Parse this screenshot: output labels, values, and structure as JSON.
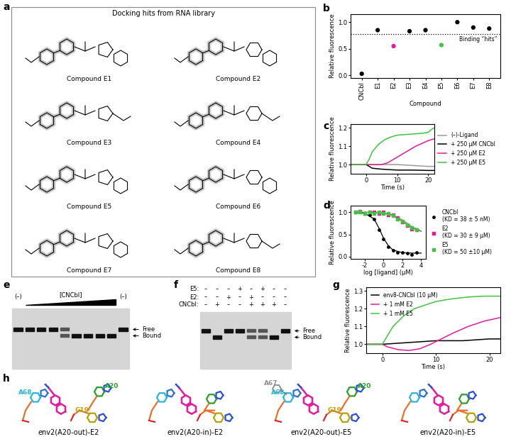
{
  "panel_labels": [
    "a",
    "b",
    "c",
    "d",
    "e",
    "f",
    "g",
    "h"
  ],
  "docking": {
    "title": "Docking hits from RNA library",
    "compounds": [
      "Compound E1",
      "Compound E2",
      "Compound E3",
      "Compound E4",
      "Compound E5",
      "Compound E6",
      "Compound E7",
      "Compound E8"
    ]
  },
  "chart_data": [
    {
      "type": "scatter",
      "xlabel": "Compound",
      "ylabel": "Relative fluorescence",
      "categories": [
        "CNCbl",
        "E1",
        "E2",
        "E3",
        "E4",
        "E5",
        "E6",
        "E7",
        "E8"
      ],
      "values": [
        0.03,
        0.85,
        0.55,
        0.83,
        0.85,
        0.57,
        1.0,
        0.9,
        0.88
      ],
      "colors": [
        "#000000",
        "#000000",
        "#e6199e",
        "#000000",
        "#000000",
        "#3ec43e",
        "#000000",
        "#000000",
        "#000000"
      ],
      "threshold": 0.78,
      "threshold_label": "Binding “hits”",
      "ylim": [
        -0.05,
        1.15
      ],
      "yticks": [
        {
          "value": 0,
          "label": "0.0"
        },
        {
          "value": 0.5,
          "label": "0.5"
        },
        {
          "value": 1.0,
          "label": "1.0"
        }
      ]
    },
    {
      "type": "line",
      "xlabel": "Time (s)",
      "ylabel": "Relative fluorescence",
      "legend": "right",
      "xlim": [
        -5,
        22
      ],
      "xticks": [
        0,
        10,
        20
      ],
      "ylim": [
        0.95,
        1.22
      ],
      "yticks": [
        {
          "value": 1.0,
          "label": "1.0"
        },
        {
          "value": 1.1,
          "label": "1.1"
        },
        {
          "value": 1.2,
          "label": "1.2"
        }
      ],
      "series": [
        {
          "name": "(–)-Ligand",
          "color": "#999999",
          "x": [
            -5,
            0,
            5,
            10,
            15,
            20,
            22
          ],
          "values": [
            1.0,
            1.0,
            1.0,
            1.0,
            0.995,
            0.99,
            0.99
          ]
        },
        {
          "name": "+ 250 μM CNCbl",
          "color": "#000000",
          "x": [
            -5,
            0,
            2,
            5,
            10,
            15,
            20,
            22
          ],
          "values": [
            1.0,
            1.0,
            0.98,
            0.975,
            0.97,
            0.97,
            0.968,
            0.968
          ]
        },
        {
          "name": "+ 250 μM E2",
          "color": "#e6199e",
          "x": [
            -5,
            0,
            3,
            5,
            7,
            10,
            13,
            16,
            20,
            22
          ],
          "values": [
            1.0,
            1.0,
            1.0,
            1.0,
            1.01,
            1.04,
            1.07,
            1.1,
            1.13,
            1.14
          ]
        },
        {
          "name": "+ 250 μM E5",
          "color": "#3ec43e",
          "x": [
            -5,
            0,
            1,
            2,
            4,
            6,
            8,
            10,
            14,
            18,
            20,
            21,
            22
          ],
          "values": [
            1.0,
            1.0,
            1.03,
            1.07,
            1.11,
            1.135,
            1.15,
            1.16,
            1.165,
            1.17,
            1.175,
            1.19,
            1.2
          ]
        }
      ]
    },
    {
      "type": "scatter",
      "xlabel": "log [ligand] (μM)",
      "ylabel": "Relative fluorescence",
      "legend": "right",
      "xlim": [
        -3.5,
        4.5
      ],
      "xticks": [
        -2,
        0,
        2,
        4
      ],
      "ylim": [
        -0.05,
        1.15
      ],
      "yticks": [
        {
          "value": 0,
          "label": "0.0"
        },
        {
          "value": 0.5,
          "label": "0.5"
        },
        {
          "value": 1.0,
          "label": "1.0"
        }
      ],
      "fit_x": [
        -3,
        -2,
        -1,
        -0.5,
        0,
        0.5,
        1,
        2,
        3,
        4
      ],
      "series": [
        {
          "name": "CNCbl",
          "kd_label": "(KD = 38 ± 5 nM)",
          "color": "#000000",
          "marker": "circle",
          "x": [
            -3,
            -2.5,
            -2,
            -1.5,
            -1,
            -0.5,
            0,
            0.5,
            1,
            1.5,
            2,
            2.5,
            3,
            3.5
          ],
          "values": [
            1.0,
            1.0,
            0.98,
            0.95,
            0.85,
            0.6,
            0.4,
            0.22,
            0.15,
            0.1,
            0.1,
            0.08,
            0.05,
            0.1
          ],
          "fit_values": [
            1.0,
            0.98,
            0.85,
            0.65,
            0.42,
            0.25,
            0.15,
            0.09,
            0.08,
            0.08
          ]
        },
        {
          "name": "E2",
          "kd_label": "(KD = 30 ± 9 μM)",
          "color": "#e6199e",
          "marker": "square",
          "x": [
            -3,
            -2.5,
            -2,
            -1.5,
            -1,
            -0.5,
            0,
            0.5,
            1,
            1.5,
            2,
            2.5,
            3,
            3.5
          ],
          "values": [
            1.0,
            1.02,
            0.97,
            1.0,
            1.0,
            0.98,
            1.0,
            0.95,
            0.95,
            0.88,
            0.78,
            0.7,
            0.62,
            0.6
          ],
          "fit_values": [
            1.0,
            1.0,
            1.0,
            0.99,
            0.98,
            0.96,
            0.93,
            0.8,
            0.65,
            0.57
          ]
        },
        {
          "name": "E5",
          "kd_label": "(KD = 50 ±10 μM)",
          "color": "#3ec43e",
          "marker": "square",
          "x": [
            -3,
            -2.5,
            -2,
            -1.5,
            -1,
            -0.5,
            0,
            0.5,
            1,
            1.5,
            2,
            2.5,
            3,
            3.5
          ],
          "values": [
            1.0,
            1.0,
            0.98,
            1.0,
            0.97,
            1.0,
            0.98,
            0.97,
            0.93,
            0.85,
            0.8,
            0.72,
            0.65,
            0.6
          ],
          "fit_values": [
            1.0,
            1.0,
            1.0,
            0.99,
            0.98,
            0.97,
            0.94,
            0.83,
            0.68,
            0.58
          ]
        }
      ]
    },
    {
      "type": "line",
      "xlabel": "Time (s)",
      "ylabel": "Relative fluorescence",
      "legend": "upper left",
      "xlim": [
        -3,
        22
      ],
      "xticks": [
        0,
        10,
        20
      ],
      "ylim": [
        0.95,
        1.32
      ],
      "yticks": [
        {
          "value": 1.0,
          "label": "1.0"
        },
        {
          "value": 1.1,
          "label": "1.1"
        },
        {
          "value": 1.2,
          "label": "1.2"
        },
        {
          "value": 1.3,
          "label": "1.3"
        }
      ],
      "series": [
        {
          "name": "env8-CNCbl (10 μM)",
          "color": "#000000",
          "x": [
            -3,
            0,
            5,
            10,
            15,
            20,
            22
          ],
          "values": [
            1.0,
            1.0,
            1.01,
            1.02,
            1.02,
            1.03,
            1.03
          ]
        },
        {
          "name": "+ 1 mM E2",
          "color": "#e6199e",
          "x": [
            -3,
            0,
            1,
            3,
            5,
            7,
            9,
            11,
            13,
            16,
            19,
            22
          ],
          "values": [
            1.0,
            1.0,
            0.985,
            0.97,
            0.965,
            0.975,
            1.0,
            1.03,
            1.06,
            1.1,
            1.13,
            1.15
          ]
        },
        {
          "name": "+ 1 mM E5",
          "color": "#3ec43e",
          "x": [
            -3,
            0,
            1,
            2,
            4,
            6,
            8,
            10,
            13,
            16,
            19,
            22
          ],
          "values": [
            1.0,
            1.0,
            1.05,
            1.1,
            1.16,
            1.2,
            1.22,
            1.24,
            1.255,
            1.265,
            1.27,
            1.27
          ]
        }
      ]
    }
  ],
  "gel_e": {
    "left_label": "(–)",
    "titration_label": "[CNCbl]",
    "right_label": "(–)",
    "bands": [
      "Free",
      "Bound"
    ]
  },
  "gel_f": {
    "rows": [
      {
        "label": "E5:",
        "marks": [
          "–",
          "–",
          "–",
          "+",
          "–",
          "+",
          "–",
          "–"
        ]
      },
      {
        "label": "E2:",
        "marks": [
          "–",
          "–",
          "+",
          "–",
          "+",
          "–",
          "–",
          "–"
        ]
      },
      {
        "label": "CNCbl:",
        "marks": [
          "–",
          "+",
          "–",
          "–",
          "+",
          "+",
          "+",
          "–"
        ]
      }
    ],
    "bands": [
      "Free",
      "Bound"
    ]
  },
  "structures": [
    {
      "label": "env2(A20-out)-E2",
      "residues": [
        "A68",
        "A20",
        "G19"
      ]
    },
    {
      "label": "env2(A20-in)-E2",
      "residues": []
    },
    {
      "label": "env2(A20-out)-E5",
      "residues": [
        "A67",
        "A68",
        "A20",
        "G19"
      ]
    },
    {
      "label": "env2(A20-in)-E5",
      "residues": []
    }
  ]
}
